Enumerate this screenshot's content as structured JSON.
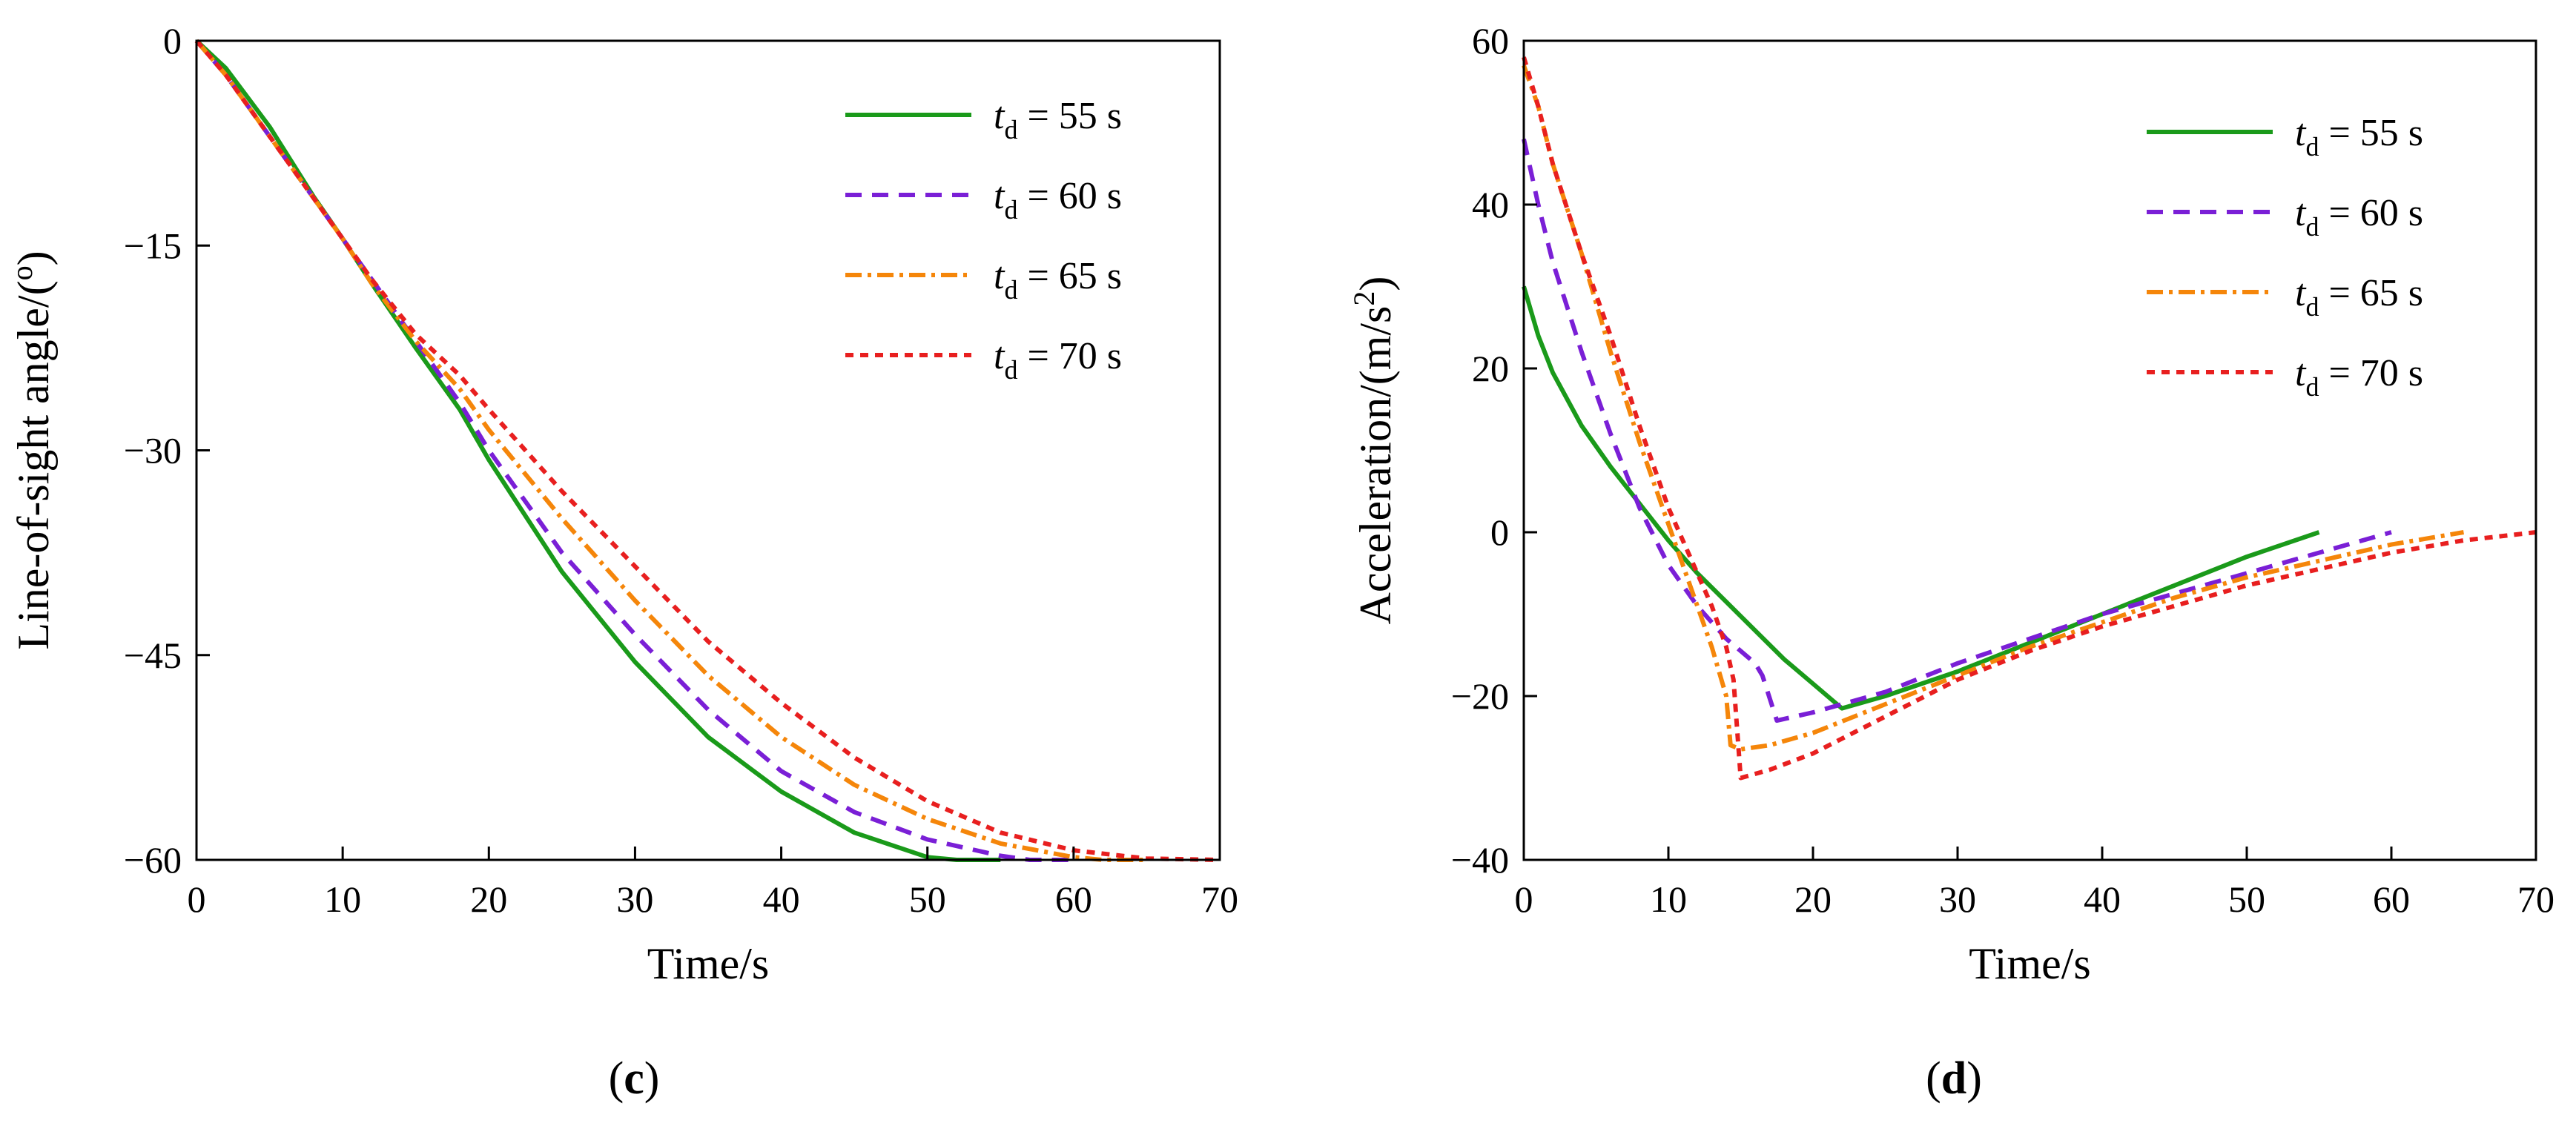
{
  "chart_data": [
    {
      "type": "line",
      "panel": "c",
      "xlabel": "Time/s",
      "ylabel": "Line-of-sight angle/(°)",
      "ylabel_parts": [
        "Line-of-sight angle/(",
        "o",
        ")"
      ],
      "xlim": [
        0,
        70
      ],
      "ylim": [
        -60,
        0
      ],
      "xticks": [
        0,
        10,
        20,
        30,
        40,
        50,
        60,
        70
      ],
      "yticks": [
        0,
        -15,
        -30,
        -45,
        -60
      ],
      "ytick_labels": [
        "0",
        "−15",
        "−30",
        "−45",
        "−60"
      ],
      "legend_position": "top-right",
      "series": [
        {
          "name": "td = 55 s",
          "legend": {
            "t": "t",
            "sub": "d",
            "rest": " = 55 s"
          },
          "color": "#1a9a1a",
          "dash": "solid",
          "x": [
            0,
            2,
            5,
            8,
            10,
            12,
            15,
            18,
            20,
            25,
            30,
            35,
            40,
            45,
            50,
            52,
            55
          ],
          "y": [
            0,
            -2,
            -6.3,
            -11.4,
            -14.5,
            -17.8,
            -22.5,
            -27,
            -30.7,
            -38.9,
            -45.5,
            -51,
            -55,
            -58,
            -59.8,
            -60,
            -60
          ]
        },
        {
          "name": "td = 60 s",
          "legend": {
            "t": "t",
            "sub": "d",
            "rest": " = 60 s"
          },
          "color": "#7a1fd6",
          "dash": "22,14",
          "x": [
            0,
            2,
            5,
            8,
            10,
            12,
            15,
            18,
            20,
            25,
            30,
            35,
            40,
            45,
            50,
            55,
            57,
            60
          ],
          "y": [
            0,
            -2.5,
            -7,
            -11.5,
            -14.5,
            -17.5,
            -22,
            -26.5,
            -30,
            -37.5,
            -43.5,
            -49,
            -53.5,
            -56.5,
            -58.5,
            -59.7,
            -60,
            -60
          ]
        },
        {
          "name": "td = 65 s",
          "legend": {
            "t": "t",
            "sub": "d",
            "rest": " = 65 s"
          },
          "color": "#f5860a",
          "dash": "22,8,5,8",
          "x": [
            0,
            2,
            5,
            8,
            10,
            12,
            15,
            18,
            20,
            25,
            30,
            35,
            40,
            45,
            50,
            55,
            60,
            62,
            65
          ],
          "y": [
            0,
            -2.5,
            -7,
            -11.5,
            -14.5,
            -17.8,
            -22,
            -25.5,
            -28.5,
            -35,
            -41,
            -46.5,
            -51,
            -54.5,
            -57,
            -58.8,
            -59.8,
            -60,
            -60
          ]
        },
        {
          "name": "td = 70 s",
          "legend": {
            "t": "t",
            "sub": "d",
            "rest": " = 70 s"
          },
          "color": "#e81f1f",
          "dash": "11,9",
          "x": [
            0,
            2,
            5,
            8,
            10,
            12,
            15,
            18,
            20,
            25,
            30,
            35,
            40,
            45,
            50,
            55,
            60,
            65,
            70
          ],
          "y": [
            0,
            -2.5,
            -7,
            -11.5,
            -14.5,
            -17.5,
            -21.5,
            -24.5,
            -27,
            -33,
            -38.5,
            -44,
            -48.5,
            -52.5,
            -55.7,
            -58,
            -59.3,
            -59.9,
            -60
          ]
        }
      ]
    },
    {
      "type": "line",
      "panel": "d",
      "xlabel": "Time/s",
      "ylabel": "Acceleration/(m/s²)",
      "ylabel_parts": [
        "Acceleration/(m/s",
        "2",
        ")"
      ],
      "xlim": [
        0,
        70
      ],
      "ylim": [
        -40,
        60
      ],
      "xticks": [
        0,
        10,
        20,
        30,
        40,
        50,
        60,
        70
      ],
      "yticks": [
        60,
        40,
        20,
        0,
        -20,
        -40
      ],
      "ytick_labels": [
        "60",
        "40",
        "20",
        "0",
        "−20",
        "−40"
      ],
      "legend_position": "top-right",
      "series": [
        {
          "name": "td = 55 s",
          "legend": {
            "t": "t",
            "sub": "d",
            "rest": " = 55 s"
          },
          "color": "#1a9a1a",
          "dash": "solid",
          "x": [
            0,
            1,
            2,
            4,
            6,
            8,
            10,
            12,
            14,
            16,
            18,
            20,
            22,
            25,
            30,
            35,
            40,
            45,
            50,
            55
          ],
          "y": [
            30,
            24,
            19.5,
            13,
            8,
            3.5,
            -1,
            -5,
            -8.5,
            -12,
            -15.5,
            -18.5,
            -21.5,
            -20,
            -17,
            -13.5,
            -10,
            -6.5,
            -3,
            0
          ]
        },
        {
          "name": "td = 60 s",
          "legend": {
            "t": "t",
            "sub": "d",
            "rest": " = 60 s"
          },
          "color": "#7a1fd6",
          "dash": "22,14",
          "x": [
            0,
            1,
            2,
            4,
            6,
            8,
            10,
            12,
            14,
            16,
            16.5,
            17.5,
            20,
            25,
            30,
            35,
            40,
            45,
            50,
            55,
            60
          ],
          "y": [
            48,
            40,
            33,
            22,
            12,
            3,
            -4,
            -9,
            -13,
            -16,
            -17.5,
            -23,
            -22,
            -19.5,
            -16,
            -13,
            -10,
            -7.5,
            -5,
            -2.5,
            0
          ]
        },
        {
          "name": "td = 65 s",
          "legend": {
            "t": "t",
            "sub": "d",
            "rest": " = 65 s"
          },
          "color": "#f5860a",
          "dash": "22,8,5,8",
          "x": [
            0,
            1,
            2,
            4,
            6,
            8,
            10,
            11,
            12,
            13,
            14,
            14.3,
            15,
            17,
            20,
            25,
            30,
            35,
            40,
            45,
            50,
            55,
            60,
            65
          ],
          "y": [
            57,
            52,
            45,
            34,
            22,
            11,
            1,
            -4,
            -9,
            -14,
            -20,
            -26,
            -26.5,
            -26,
            -24.5,
            -21,
            -17.5,
            -14,
            -11,
            -8,
            -5.5,
            -3.5,
            -1.5,
            0
          ]
        },
        {
          "name": "td = 70 s",
          "legend": {
            "t": "t",
            "sub": "d",
            "rest": " = 70 s"
          },
          "color": "#e81f1f",
          "dash": "11,9",
          "x": [
            0,
            1,
            2,
            4,
            6,
            8,
            10,
            12,
            13,
            14,
            14.5,
            15,
            17,
            20,
            25,
            30,
            35,
            40,
            45,
            50,
            55,
            60,
            65,
            70
          ],
          "y": [
            58,
            52,
            45,
            34,
            24,
            13,
            3,
            -5,
            -9,
            -14,
            -18,
            -30,
            -29,
            -27,
            -22.5,
            -18,
            -14.5,
            -11.5,
            -9,
            -6.5,
            -4.5,
            -2.5,
            -1,
            0
          ]
        }
      ]
    }
  ],
  "panel_labels": {
    "c": "c",
    "d": "d"
  }
}
